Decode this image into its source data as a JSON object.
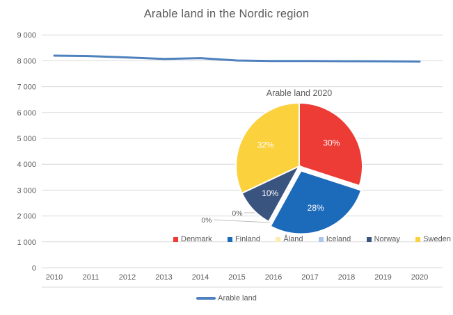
{
  "title": "Arable land in the Nordic region",
  "chart_data": [
    {
      "type": "line",
      "title": "Arable land in the Nordic region",
      "x": [
        2010,
        2011,
        2012,
        2013,
        2014,
        2015,
        2016,
        2017,
        2018,
        2019,
        2020
      ],
      "series": [
        {
          "name": "Arable land",
          "values": [
            8200,
            8180,
            8130,
            8070,
            8100,
            8010,
            7990,
            7990,
            7985,
            7980,
            7970
          ],
          "color": "#4E81BD"
        }
      ],
      "ylim": [
        0,
        9000
      ],
      "ytick_labels": [
        "0",
        "1 000",
        "2 000",
        "3 000",
        "4 000",
        "5 000",
        "6 000",
        "7 000",
        "8 000",
        "9 000"
      ],
      "grid": true,
      "legend_position": "bottom"
    },
    {
      "type": "pie",
      "title": "Arable land 2020",
      "categories": [
        "Denmark",
        "Finland",
        "Åland",
        "Iceland",
        "Norway",
        "Sweden"
      ],
      "values": [
        30,
        28,
        0,
        0,
        10,
        32
      ],
      "labels": [
        "30%",
        "28%",
        "0%",
        "0%",
        "10%",
        "32%"
      ],
      "colors": [
        "#ED3B35",
        "#1C6BBB",
        "#FCECAE",
        "#AAC8EA",
        "#3A5480",
        "#FCD13E"
      ],
      "legend_position": "bottom",
      "exploded_slice": "Finland"
    }
  ],
  "line_legend_label": "Arable land",
  "colors": {
    "text": "#595959",
    "grid": "#D9D9D9",
    "line": "#4E81BD"
  }
}
